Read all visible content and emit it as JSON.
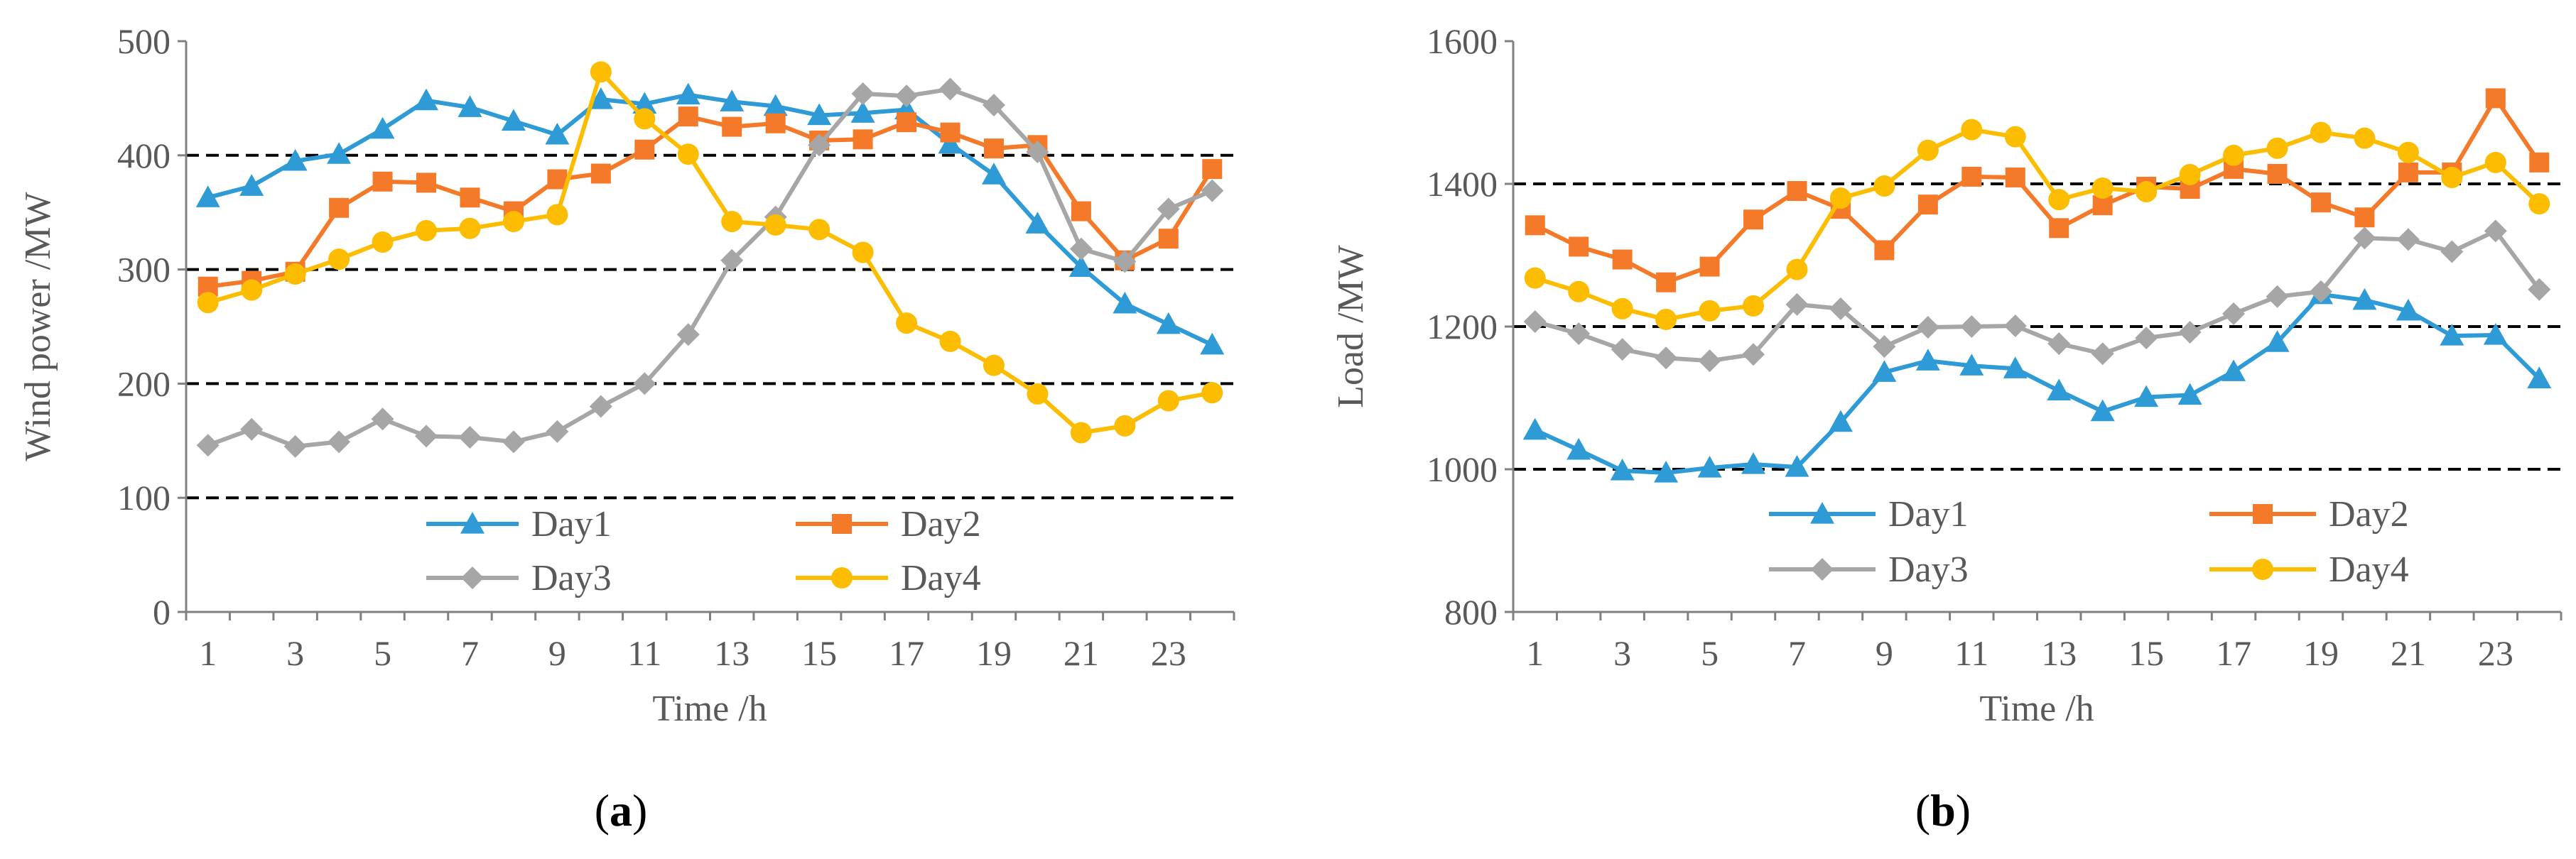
{
  "chart_data": [
    {
      "type": "line",
      "panel_label": "a",
      "xlabel": "Time /h",
      "ylabel": "Wind power /MW",
      "ylim": [
        0,
        500
      ],
      "yticks": [
        0,
        100,
        200,
        300,
        400,
        500
      ],
      "dashed_gridlines": [
        100,
        200,
        300,
        400
      ],
      "x": [
        1,
        2,
        3,
        4,
        5,
        6,
        7,
        8,
        9,
        10,
        11,
        12,
        13,
        14,
        15,
        16,
        17,
        18,
        19,
        20,
        21,
        22,
        23,
        24
      ],
      "xtick_labels": [
        "1",
        "3",
        "5",
        "7",
        "9",
        "11",
        "13",
        "15",
        "17",
        "19",
        "21",
        "23"
      ],
      "legend_position": "bottom-center",
      "series": [
        {
          "name": "Day1",
          "color": "#2E9BD6",
          "marker": "triangle",
          "values": [
            363,
            373,
            395,
            401,
            423,
            448,
            442,
            430,
            418,
            449,
            445,
            453,
            447,
            443,
            435,
            437,
            440,
            410,
            383,
            340,
            302,
            270,
            252,
            234
          ]
        },
        {
          "name": "Day2",
          "color": "#F47A2A",
          "marker": "square",
          "values": [
            285,
            290,
            298,
            354,
            377,
            376,
            363,
            351,
            379,
            384,
            405,
            434,
            425,
            428,
            413,
            414,
            429,
            420,
            406,
            409,
            351,
            308,
            327,
            388
          ]
        },
        {
          "name": "Day3",
          "color": "#A6A6A6",
          "marker": "diamond",
          "values": [
            146,
            160,
            145,
            149,
            169,
            154,
            153,
            149,
            158,
            180,
            200,
            243,
            308,
            346,
            409,
            454,
            452,
            458,
            444,
            403,
            318,
            307,
            353,
            369
          ]
        },
        {
          "name": "Day4",
          "color": "#FCBC00",
          "marker": "circle",
          "values": [
            271,
            282,
            296,
            309,
            324,
            334,
            336,
            342,
            348,
            473,
            432,
            401,
            342,
            339,
            335,
            315,
            253,
            237,
            216,
            191,
            157,
            163,
            185,
            192
          ]
        }
      ]
    },
    {
      "type": "line",
      "panel_label": "b",
      "xlabel": "Time /h",
      "ylabel": "Load /MW",
      "ylim": [
        800,
        1600
      ],
      "yticks": [
        800,
        1000,
        1200,
        1400,
        1600
      ],
      "dashed_gridlines": [
        1000,
        1200,
        1400
      ],
      "x": [
        1,
        2,
        3,
        4,
        5,
        6,
        7,
        8,
        9,
        10,
        11,
        12,
        13,
        14,
        15,
        16,
        17,
        18,
        19,
        20,
        21,
        22,
        23,
        24
      ],
      "xtick_labels": [
        "1",
        "3",
        "5",
        "7",
        "9",
        "11",
        "13",
        "15",
        "17",
        "19",
        "21",
        "23"
      ],
      "legend_position": "bottom-center",
      "series": [
        {
          "name": "Day1",
          "color": "#2E9BD6",
          "marker": "triangle",
          "values": [
            1055,
            1027,
            998,
            995,
            1002,
            1007,
            1003,
            1066,
            1136,
            1152,
            1145,
            1141,
            1110,
            1081,
            1101,
            1104,
            1137,
            1178,
            1245,
            1237,
            1222,
            1187,
            1188,
            1127
          ]
        },
        {
          "name": "Day2",
          "color": "#F47A2A",
          "marker": "square",
          "values": [
            1342,
            1312,
            1294,
            1262,
            1284,
            1350,
            1390,
            1365,
            1307,
            1371,
            1410,
            1409,
            1338,
            1370,
            1396,
            1393,
            1421,
            1414,
            1374,
            1353,
            1416,
            1416,
            1520,
            1430
          ]
        },
        {
          "name": "Day3",
          "color": "#A6A6A6",
          "marker": "diamond",
          "values": [
            1207,
            1190,
            1168,
            1156,
            1152,
            1161,
            1231,
            1225,
            1172,
            1199,
            1200,
            1201,
            1176,
            1162,
            1184,
            1192,
            1218,
            1242,
            1249,
            1324,
            1322,
            1305,
            1334,
            1252
          ]
        },
        {
          "name": "Day4",
          "color": "#FCBC00",
          "marker": "circle",
          "values": [
            1268,
            1249,
            1225,
            1210,
            1222,
            1229,
            1280,
            1380,
            1397,
            1447,
            1476,
            1466,
            1378,
            1394,
            1389,
            1413,
            1440,
            1450,
            1472,
            1464,
            1444,
            1409,
            1430,
            1372
          ]
        }
      ]
    }
  ]
}
